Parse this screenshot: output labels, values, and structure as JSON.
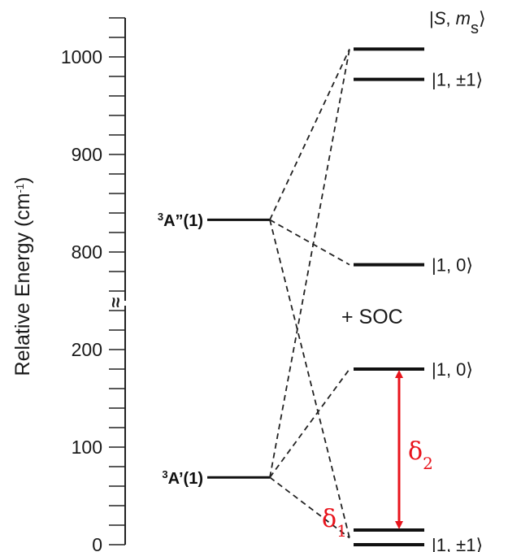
{
  "axis": {
    "title_main": "Relative Energy (cm",
    "title_sup": "-1",
    "title_close": ")",
    "break_symbol": "≈",
    "ticks": [
      {
        "value": 1000,
        "label": "1000"
      },
      {
        "value": 900,
        "label": "900"
      },
      {
        "value": 800,
        "label": "800"
      },
      {
        "value": 200,
        "label": "200"
      },
      {
        "value": 100,
        "label": "100"
      },
      {
        "value": 0,
        "label": "0"
      }
    ]
  },
  "states": {
    "upper": {
      "sup": "3",
      "name": "A”(1)",
      "energy": 833
    },
    "lower": {
      "sup": "3",
      "name": "A’(1)",
      "energy": 69
    }
  },
  "header": {
    "bar_left": "|",
    "s_symbol": "S",
    "comma": ", ",
    "m_symbol": "m",
    "m_sub": "s",
    "bracket": "⟩"
  },
  "levels": [
    {
      "energy": 1008,
      "ket": "|1, ±1⟩",
      "show_label": false
    },
    {
      "energy": 977,
      "ket": "|1, ±1⟩",
      "show_label": true
    },
    {
      "energy": 787,
      "ket": "|1, 0⟩",
      "show_label": true
    },
    {
      "energy": 180,
      "ket": "|1, 0⟩",
      "show_label": true
    },
    {
      "energy": 15,
      "ket": "|1, ±1⟩",
      "show_label": false
    },
    {
      "energy": 0,
      "ket": "|1, ±1⟩",
      "show_label": true
    }
  ],
  "soc_label": "+ SOC",
  "delta1": {
    "symbol": "δ",
    "sub": "1"
  },
  "delta2": {
    "symbol": "δ",
    "sub": "2"
  },
  "colors": {
    "lines": "#111111",
    "arrow": "#e8141c",
    "delta_text": "#e8141c"
  }
}
